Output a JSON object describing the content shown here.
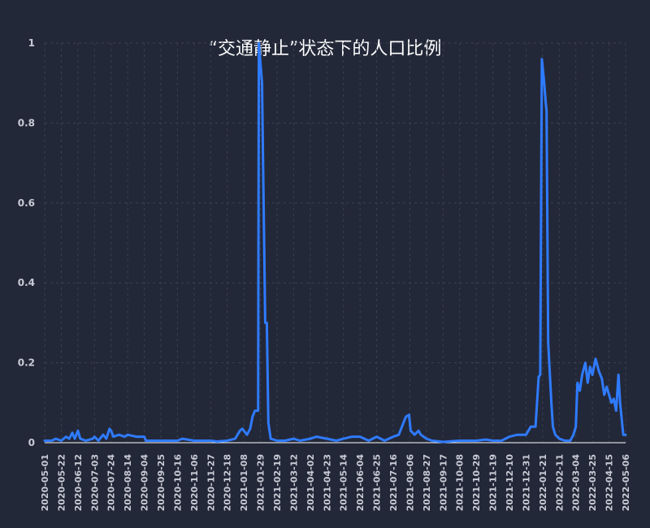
{
  "chart_data": {
    "type": "line",
    "title": "“交通静止”状态下的人口比例",
    "xlabel": "",
    "ylabel": "",
    "ylim": [
      0,
      1
    ],
    "yticks": [
      "0",
      "0.2",
      "0.4",
      "0.6",
      "0.8",
      "1"
    ],
    "x_tick_labels": [
      "2020-05-01",
      "2020-05-22",
      "2020-06-12",
      "2020-07-03",
      "2020-07-24",
      "2020-08-14",
      "2020-09-04",
      "2020-09-25",
      "2020-10-16",
      "2020-11-06",
      "2020-11-27",
      "2020-12-18",
      "2021-01-08",
      "2021-01-29",
      "2021-02-19",
      "2021-03-12",
      "2021-04-02",
      "2021-04-23",
      "2021-05-14",
      "2021-06-04",
      "2021-06-25",
      "2021-07-16",
      "2021-08-06",
      "2021-08-27",
      "2021-09-17",
      "2021-10-08",
      "2021-10-29",
      "2021-11-19",
      "2021-12-10",
      "2021-12-31",
      "2022-01-21",
      "2022-02-11",
      "2022-03-04",
      "2022-03-25",
      "2022-04-15",
      "2022-05-06"
    ],
    "x_range": [
      "2020-05-01",
      "2022-05-06"
    ],
    "grid": true,
    "legend": "none",
    "series": [
      {
        "color": "#2f7bff",
        "points": [
          [
            "2020-05-01",
            0.005
          ],
          [
            "2020-05-10",
            0.005
          ],
          [
            "2020-05-15",
            0.01
          ],
          [
            "2020-05-22",
            0.005
          ],
          [
            "2020-05-28",
            0.015
          ],
          [
            "2020-06-01",
            0.01
          ],
          [
            "2020-06-05",
            0.025
          ],
          [
            "2020-06-08",
            0.01
          ],
          [
            "2020-06-12",
            0.03
          ],
          [
            "2020-06-15",
            0.01
          ],
          [
            "2020-06-22",
            0.005
          ],
          [
            "2020-07-01",
            0.01
          ],
          [
            "2020-07-03",
            0.015
          ],
          [
            "2020-07-08",
            0.005
          ],
          [
            "2020-07-14",
            0.02
          ],
          [
            "2020-07-18",
            0.01
          ],
          [
            "2020-07-22",
            0.035
          ],
          [
            "2020-07-24",
            0.03
          ],
          [
            "2020-07-27",
            0.015
          ],
          [
            "2020-08-03",
            0.02
          ],
          [
            "2020-08-10",
            0.015
          ],
          [
            "2020-08-14",
            0.02
          ],
          [
            "2020-08-25",
            0.015
          ],
          [
            "2020-09-04",
            0.015
          ],
          [
            "2020-09-06",
            0.005
          ],
          [
            "2020-09-25",
            0.005
          ],
          [
            "2020-10-16",
            0.005
          ],
          [
            "2020-10-22",
            0.01
          ],
          [
            "2020-11-06",
            0.005
          ],
          [
            "2020-11-27",
            0.005
          ],
          [
            "2020-12-05",
            0.003
          ],
          [
            "2020-12-18",
            0.005
          ],
          [
            "2020-12-28",
            0.01
          ],
          [
            "2021-01-03",
            0.03
          ],
          [
            "2021-01-06",
            0.035
          ],
          [
            "2021-01-12",
            0.02
          ],
          [
            "2021-01-16",
            0.035
          ],
          [
            "2021-01-19",
            0.065
          ],
          [
            "2021-01-22",
            0.08
          ],
          [
            "2021-01-26",
            0.08
          ],
          [
            "2021-01-27",
            1.0
          ],
          [
            "2021-01-31",
            0.9
          ],
          [
            "2021-02-04",
            0.3
          ],
          [
            "2021-02-06",
            0.3
          ],
          [
            "2021-02-08",
            0.05
          ],
          [
            "2021-02-11",
            0.01
          ],
          [
            "2021-02-19",
            0.005
          ],
          [
            "2021-03-01",
            0.005
          ],
          [
            "2021-03-12",
            0.01
          ],
          [
            "2021-03-20",
            0.005
          ],
          [
            "2021-04-02",
            0.01
          ],
          [
            "2021-04-10",
            0.015
          ],
          [
            "2021-04-23",
            0.01
          ],
          [
            "2021-05-05",
            0.005
          ],
          [
            "2021-05-14",
            0.01
          ],
          [
            "2021-05-25",
            0.015
          ],
          [
            "2021-06-04",
            0.015
          ],
          [
            "2021-06-15",
            0.005
          ],
          [
            "2021-06-25",
            0.015
          ],
          [
            "2021-07-05",
            0.005
          ],
          [
            "2021-07-16",
            0.015
          ],
          [
            "2021-07-23",
            0.02
          ],
          [
            "2021-07-29",
            0.05
          ],
          [
            "2021-08-01",
            0.065
          ],
          [
            "2021-08-05",
            0.07
          ],
          [
            "2021-08-07",
            0.03
          ],
          [
            "2021-08-12",
            0.02
          ],
          [
            "2021-08-17",
            0.03
          ],
          [
            "2021-08-20",
            0.02
          ],
          [
            "2021-08-27",
            0.01
          ],
          [
            "2021-09-03",
            0.005
          ],
          [
            "2021-09-17",
            0.002
          ],
          [
            "2021-10-08",
            0.005
          ],
          [
            "2021-10-29",
            0.005
          ],
          [
            "2021-11-10",
            0.008
          ],
          [
            "2021-11-19",
            0.005
          ],
          [
            "2021-11-30",
            0.005
          ],
          [
            "2021-12-10",
            0.015
          ],
          [
            "2021-12-20",
            0.02
          ],
          [
            "2021-12-31",
            0.02
          ],
          [
            "2022-01-06",
            0.04
          ],
          [
            "2022-01-12",
            0.04
          ],
          [
            "2022-01-16",
            0.165
          ],
          [
            "2022-01-18",
            0.17
          ],
          [
            "2022-01-20",
            0.96
          ],
          [
            "2022-01-23",
            0.9
          ],
          [
            "2022-01-25",
            0.85
          ],
          [
            "2022-01-26",
            0.83
          ],
          [
            "2022-01-28",
            0.25
          ],
          [
            "2022-02-01",
            0.1
          ],
          [
            "2022-02-03",
            0.04
          ],
          [
            "2022-02-06",
            0.02
          ],
          [
            "2022-02-11",
            0.01
          ],
          [
            "2022-02-18",
            0.005
          ],
          [
            "2022-02-25",
            0.005
          ],
          [
            "2022-03-01",
            0.02
          ],
          [
            "2022-03-04",
            0.04
          ],
          [
            "2022-03-06",
            0.15
          ],
          [
            "2022-03-09",
            0.13
          ],
          [
            "2022-03-12",
            0.17
          ],
          [
            "2022-03-16",
            0.2
          ],
          [
            "2022-03-19",
            0.15
          ],
          [
            "2022-03-22",
            0.19
          ],
          [
            "2022-03-25",
            0.17
          ],
          [
            "2022-03-29",
            0.21
          ],
          [
            "2022-04-02",
            0.18
          ],
          [
            "2022-04-06",
            0.16
          ],
          [
            "2022-04-09",
            0.12
          ],
          [
            "2022-04-12",
            0.14
          ],
          [
            "2022-04-15",
            0.12
          ],
          [
            "2022-04-18",
            0.1
          ],
          [
            "2022-04-21",
            0.11
          ],
          [
            "2022-04-24",
            0.08
          ],
          [
            "2022-04-27",
            0.17
          ],
          [
            "2022-04-29",
            0.1
          ],
          [
            "2022-05-03",
            0.02
          ],
          [
            "2022-05-06",
            0.02
          ]
        ]
      }
    ]
  }
}
